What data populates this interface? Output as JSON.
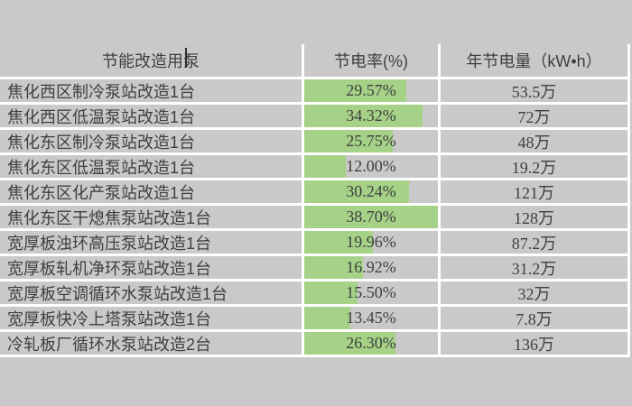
{
  "colors": {
    "background": "#c9c9c9",
    "grid_line": "#ffffff",
    "data_bar_green": "#a5d287",
    "text": "#3f3f3f"
  },
  "table": {
    "headers": [
      "节能改造用泵",
      "节电率(%)",
      "年节电量（kW•h）"
    ],
    "bar_max_percent": 38.7,
    "rows": [
      {
        "pump": "焦化西区制冷泵站改造1台",
        "rate_value": 29.57,
        "saving_rate": "29.57%",
        "annual_saving": "53.5万"
      },
      {
        "pump": "焦化西区低温泵站改造1台",
        "rate_value": 34.32,
        "saving_rate": "34.32%",
        "annual_saving": "72万"
      },
      {
        "pump": "焦化东区制冷泵站改造1台",
        "rate_value": 25.75,
        "saving_rate": "25.75%",
        "annual_saving": "48万"
      },
      {
        "pump": "焦化东区低温泵站改造1台",
        "rate_value": 12.0,
        "saving_rate": "12.00%",
        "annual_saving": "19.2万"
      },
      {
        "pump": "焦化东区化产泵站改造1台",
        "rate_value": 30.24,
        "saving_rate": "30.24%",
        "annual_saving": "121万"
      },
      {
        "pump": "焦化东区干熄焦泵站改造1台",
        "rate_value": 38.7,
        "saving_rate": "38.70%",
        "annual_saving": "128万"
      },
      {
        "pump": "宽厚板浊环高压泵站改造1台",
        "rate_value": 19.96,
        "saving_rate": "19.96%",
        "annual_saving": "87.2万"
      },
      {
        "pump": "宽厚板轧机净环泵站改造1台",
        "rate_value": 16.92,
        "saving_rate": "16.92%",
        "annual_saving": "31.2万"
      },
      {
        "pump": "宽厚板空调循环水泵站改造1台",
        "rate_value": 15.5,
        "saving_rate": "15.50%",
        "annual_saving": "32万"
      },
      {
        "pump": "宽厚板快冷上塔泵站改造1台",
        "rate_value": 13.45,
        "saving_rate": "13.45%",
        "annual_saving": "7.8万"
      },
      {
        "pump": "冷轧板厂循环水泵站改造2台",
        "rate_value": 26.3,
        "saving_rate": "26.30%",
        "annual_saving": "136万"
      }
    ]
  },
  "chart_data": {
    "type": "table",
    "title": "",
    "columns": [
      "节能改造用泵",
      "节电率(%)",
      "年节电量（kW•h）"
    ],
    "categories": [
      "焦化西区制冷泵站改造1台",
      "焦化西区低温泵站改造1台",
      "焦化东区制冷泵站改造1台",
      "焦化东区低温泵站改造1台",
      "焦化东区化产泵站改造1台",
      "焦化东区干熄焦泵站改造1台",
      "宽厚板浊环高压泵站改造1台",
      "宽厚板轧机净环泵站改造1台",
      "宽厚板空调循环水泵站改造1台",
      "宽厚板快冷上塔泵站改造1台",
      "冷轧板厂循环水泵站改造2台"
    ],
    "series": [
      {
        "name": "节电率(%)",
        "unit": "%",
        "values": [
          29.57,
          34.32,
          25.75,
          12.0,
          30.24,
          38.7,
          19.96,
          16.92,
          15.5,
          13.45,
          26.3
        ]
      },
      {
        "name": "年节电量",
        "unit": "万kW•h",
        "values": [
          53.5,
          72,
          48,
          19.2,
          121,
          128,
          87.2,
          31.2,
          32,
          7.8,
          136
        ]
      }
    ],
    "layout": {
      "data_bars_column": "节电率(%)",
      "data_bar_max": 38.7,
      "data_bar_color": "#a5d287",
      "grid": true,
      "legend": false
    }
  }
}
